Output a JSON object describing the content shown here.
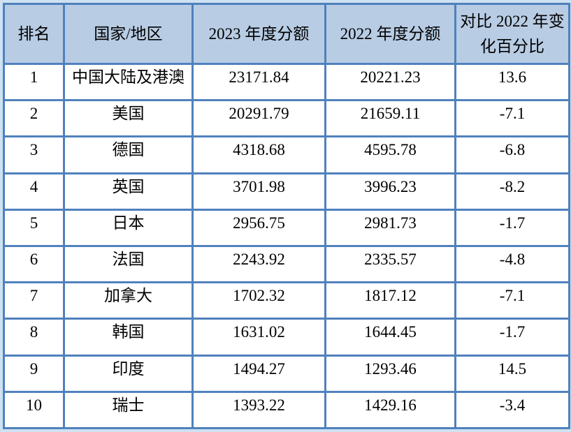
{
  "colors": {
    "page_margin_bg": "#cfe2f3",
    "table_border": "#4f81bd",
    "header_bg": "#b8cce4",
    "cell_bg": "#ffffff",
    "text": "#000000"
  },
  "table": {
    "headers": [
      {
        "label": "排名"
      },
      {
        "label": "国家/地区"
      },
      {
        "label": "2023 年度分额"
      },
      {
        "label": "2022 年度分额"
      },
      {
        "label": "对比 2022 年变化百分比"
      }
    ],
    "rows": [
      {
        "rank": "1",
        "country": "中国大陆及港澳",
        "share_2023": "23171.84",
        "share_2022": "20221.23",
        "change_pct": "13.6"
      },
      {
        "rank": "2",
        "country": "美国",
        "share_2023": "20291.79",
        "share_2022": "21659.11",
        "change_pct": "-7.1"
      },
      {
        "rank": "3",
        "country": "德国",
        "share_2023": "4318.68",
        "share_2022": "4595.78",
        "change_pct": "-6.8"
      },
      {
        "rank": "4",
        "country": "英国",
        "share_2023": "3701.98",
        "share_2022": "3996.23",
        "change_pct": "-8.2"
      },
      {
        "rank": "5",
        "country": "日本",
        "share_2023": "2956.75",
        "share_2022": "2981.73",
        "change_pct": "-1.7"
      },
      {
        "rank": "6",
        "country": "法国",
        "share_2023": "2243.92",
        "share_2022": "2335.57",
        "change_pct": "-4.8"
      },
      {
        "rank": "7",
        "country": "加拿大",
        "share_2023": "1702.32",
        "share_2022": "1817.12",
        "change_pct": "-7.1"
      },
      {
        "rank": "8",
        "country": "韩国",
        "share_2023": "1631.02",
        "share_2022": "1644.45",
        "change_pct": "-1.7"
      },
      {
        "rank": "9",
        "country": "印度",
        "share_2023": "1494.27",
        "share_2022": "1293.46",
        "change_pct": "14.5"
      },
      {
        "rank": "10",
        "country": "瑞士",
        "share_2023": "1393.22",
        "share_2022": "1429.16",
        "change_pct": "-3.4"
      }
    ]
  }
}
